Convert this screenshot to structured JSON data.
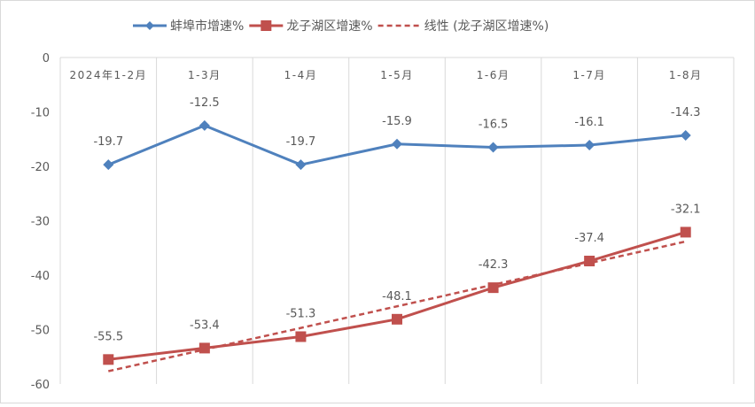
{
  "chart_data": {
    "type": "line",
    "title": "",
    "xlabel": "",
    "ylabel": "",
    "categories": [
      "2024年1-2月",
      "1-3月",
      "1-4月",
      "1-5月",
      "1-6月",
      "1-7月",
      "1-8月"
    ],
    "ylim": [
      -60,
      0
    ],
    "yticks": [
      0,
      -10,
      -20,
      -30,
      -40,
      -50,
      -60
    ],
    "grid": {
      "vertical": true,
      "horizontal": false
    },
    "legend_position": "top",
    "series": [
      {
        "name": "蚌埠市增速%",
        "values": [
          -19.7,
          -12.5,
          -19.7,
          -15.9,
          -16.5,
          -16.1,
          -14.3
        ],
        "color": "#4F81BD",
        "marker": "diamond"
      },
      {
        "name": "龙子湖区增速%",
        "values": [
          -55.5,
          -53.4,
          -51.3,
          -48.1,
          -42.3,
          -37.4,
          -32.1
        ],
        "color": "#C0504D",
        "marker": "square"
      }
    ],
    "trendline": {
      "name": "线性 (龙子湖区增速%)",
      "type": "linear",
      "of_series": "龙子湖区增速%",
      "color": "#C0504D",
      "style": "dashed"
    }
  }
}
